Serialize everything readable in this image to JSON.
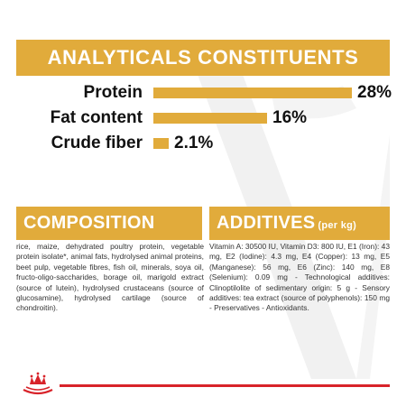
{
  "header": {
    "title": "ANALYTICALS CONSTITUENTS"
  },
  "analytics": {
    "rows": [
      {
        "label": "Protein",
        "value": "28%",
        "percent": 28
      },
      {
        "label": "Fat content",
        "value": "16%",
        "percent": 16
      },
      {
        "label": "Crude fiber",
        "value": "2.1%",
        "percent": 2.1
      }
    ]
  },
  "composition": {
    "title": "COMPOSITION",
    "text": "rice, maize, dehydrated poultry protein, vegetable protein isolate*, animal fats, hydrolysed animal proteins, beet pulp, vegetable fibres, fish oil, minerals, soya oil, fructo-oligo-saccharides, borage oil, marigold extract (source of lutein), hydrolysed crustaceans (source of glucosamine), hydrolysed cartilage (source of chondroitin)."
  },
  "additives": {
    "title": "ADDITIVES",
    "unit": "(per kg)",
    "text": "Vitamin A: 30500 IU, Vitamin D3: 800 IU, E1 (Iron): 43 mg, E2 (Iodine): 4.3 mg, E4 (Copper): 13 mg, E5 (Manganese): 56 mg, E6 (Zinc): 140 mg, E8 (Selenium): 0.09 mg - Technological additives: Clinoptilolite of sedimentary origin: 5 g - Sensory additives: tea extract (source of polyphenols): 150 mg - Preservatives - Antioxidants."
  },
  "colors": {
    "accent": "#e1ab3b",
    "brand_red": "#d8232a",
    "watermark": "#f1f1f1"
  },
  "logo": {
    "icon": "royal-canin-crown-icon"
  }
}
